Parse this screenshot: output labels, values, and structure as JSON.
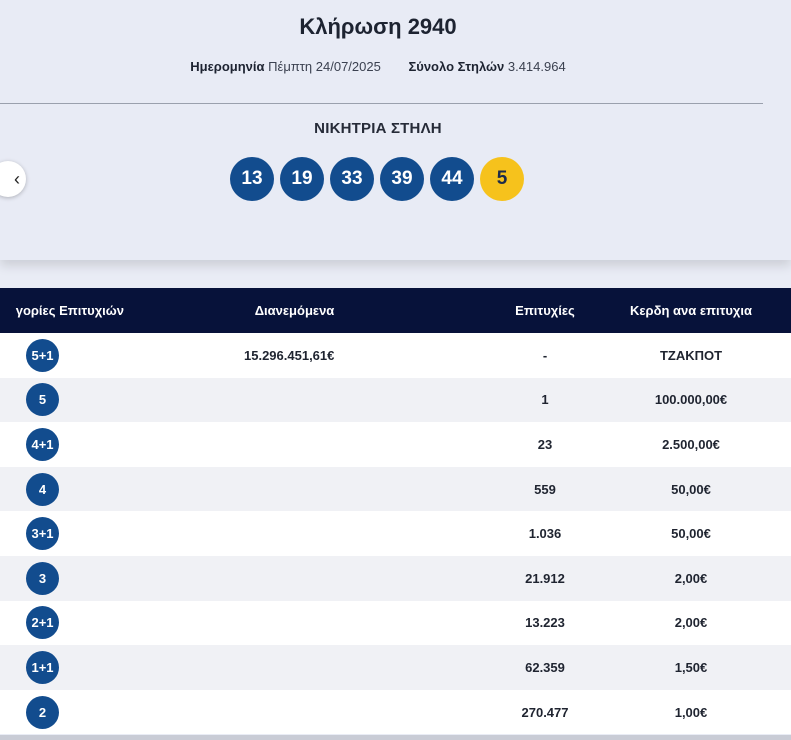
{
  "draw": {
    "title": "Κλήρωση 2940",
    "date_label": "Ημερομηνία",
    "date_value": "Πέμπτη 24/07/2025",
    "columns_label": "Σύνολο Στηλών",
    "columns_value": "3.414.964"
  },
  "winning": {
    "label": "ΝΙΚΗΤΡΙΑ ΣΤΗΛΗ",
    "numbers": [
      "13",
      "19",
      "33",
      "39",
      "44"
    ],
    "bonus": "5"
  },
  "nav": {
    "prev_icon": "chevron-left-icon",
    "prev_glyph": "‹"
  },
  "table": {
    "headers": {
      "category": "γορίες Επιτυχιών",
      "distributed": "Διανεμόμενα",
      "winners": "Επιτυχίες",
      "prize": "Κερδη ανα επιτυχια"
    },
    "rows": [
      {
        "category": "5+1",
        "distributed": "15.296.451,61€",
        "winners": "-",
        "prize": "ΤΖΑΚΠΟΤ"
      },
      {
        "category": "5",
        "distributed": "",
        "winners": "1",
        "prize": "100.000,00€"
      },
      {
        "category": "4+1",
        "distributed": "",
        "winners": "23",
        "prize": "2.500,00€"
      },
      {
        "category": "4",
        "distributed": "",
        "winners": "559",
        "prize": "50,00€"
      },
      {
        "category": "3+1",
        "distributed": "",
        "winners": "1.036",
        "prize": "50,00€"
      },
      {
        "category": "3",
        "distributed": "",
        "winners": "21.912",
        "prize": "2,00€"
      },
      {
        "category": "2+1",
        "distributed": "",
        "winners": "13.223",
        "prize": "2,00€"
      },
      {
        "category": "1+1",
        "distributed": "",
        "winners": "62.359",
        "prize": "1,50€"
      },
      {
        "category": "2",
        "distributed": "",
        "winners": "270.477",
        "prize": "1,00€"
      }
    ]
  },
  "colors": {
    "ball": "#124c8e",
    "bonus_ball": "#f6c21c",
    "table_header": "#07123a"
  }
}
